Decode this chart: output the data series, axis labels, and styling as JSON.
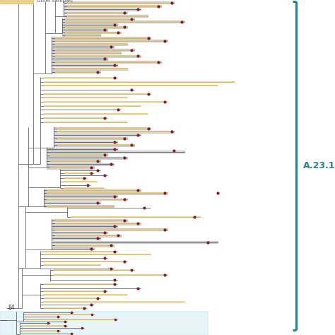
{
  "label_text": "A.23.1",
  "label_color": "#2e7d8c",
  "bracket_color": "#2e7d8c",
  "tree_line_color": "#4a4a4a",
  "highlight_bar_color": "#b0b0b0",
  "highlight_bar_alpha": 0.5,
  "dot_color_dark": "#7b1f2e",
  "dot_color_light": "#e8c97a",
  "legend_text": "Other samples",
  "legend_box_color": "#e8c97a",
  "light_blue_bg": "#c8e8f0",
  "light_blue_bg_alpha": 0.45,
  "node_84_label": "84",
  "background_color": "#ffffff"
}
